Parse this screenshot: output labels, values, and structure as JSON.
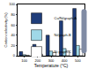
{
  "chart_data": {
    "type": "bar",
    "x_label": "Temperature (°C)",
    "y_label": "Carbon selectivity (%)",
    "categories": [
      "100",
      "200",
      "300",
      "400",
      "500"
    ],
    "series": [
      {
        "name": "Cu/Ni/graph-A",
        "color": "#1f3d7a",
        "values": [
          8,
          22,
          40,
          68,
          92
        ]
      },
      {
        "name": "Ni/graph-B",
        "color": "#9fd8e8",
        "values": [
          2,
          5,
          9,
          14,
          20
        ]
      },
      {
        "name": "Ni graph-C",
        "color": "#ffffff",
        "values": [
          1,
          3,
          6,
          9,
          13
        ]
      }
    ],
    "ylim": [
      0,
      100
    ],
    "yticks": [
      0,
      20,
      40,
      60,
      80,
      100
    ],
    "grid": false,
    "legend": "top-left"
  }
}
